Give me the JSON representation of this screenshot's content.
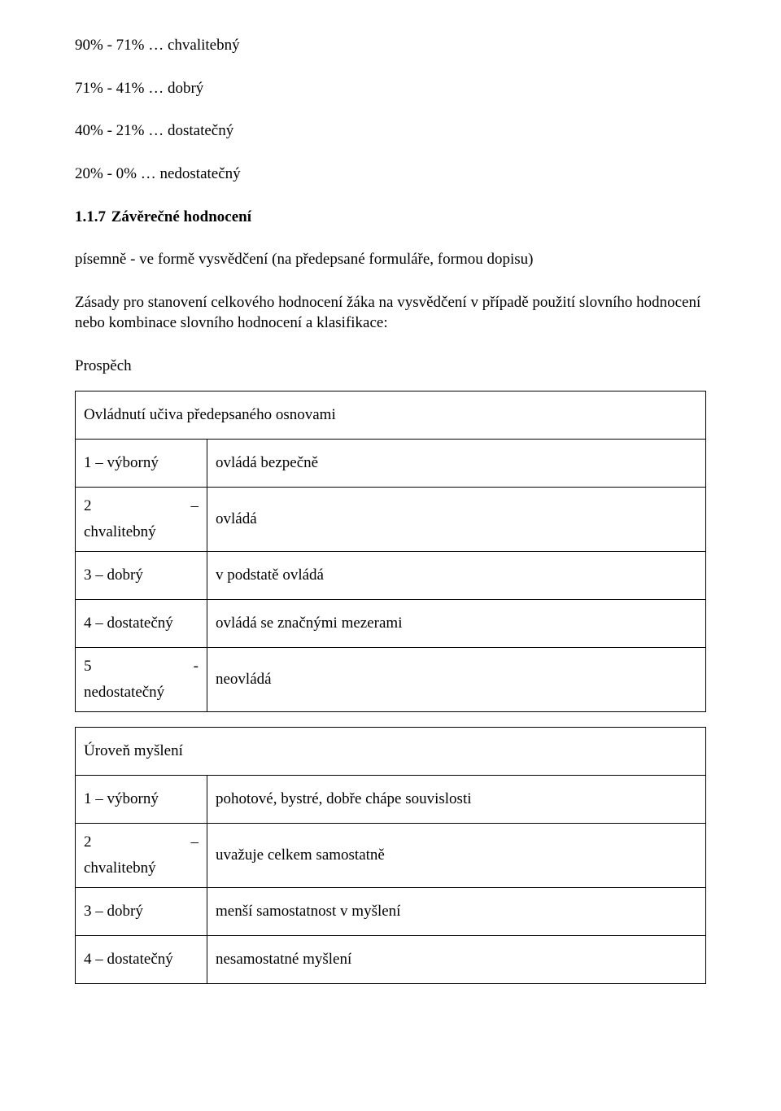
{
  "intro_lines": [
    "90% - 71% … chvalitebný",
    "71% - 41% … dobrý",
    "40% - 21% … dostatečný",
    "20% - 0% … nedostatečný"
  ],
  "section": {
    "number": "1.1.7",
    "title": "Závěrečné hodnocení"
  },
  "body_paras": [
    "písemně - ve formě vysvědčení (na předepsané formuláře, formou dopisu)",
    "Zásady pro stanovení celkového hodnocení žáka na vysvědčení v případě použití slovního hodnocení nebo kombinace slovního hodnocení a klasifikace:"
  ],
  "prospech_label": "Prospěch",
  "tables": [
    {
      "header": "Ovládnutí učiva předepsaného osnovami",
      "rows": [
        {
          "type": "single",
          "grade": "1 – výborný",
          "desc": "ovládá bezpečně"
        },
        {
          "type": "split",
          "grade_top": "2",
          "dash": "–",
          "grade_bot": "chvalitebný",
          "desc": "ovládá"
        },
        {
          "type": "single",
          "grade": "3 – dobrý",
          "desc": "v podstatě ovládá"
        },
        {
          "type": "single",
          "grade": "4 – dostatečný",
          "desc": "ovládá se značnými mezerami"
        },
        {
          "type": "split",
          "grade_top": "5",
          "dash": "-",
          "grade_bot": "nedostatečný",
          "desc": "neovládá"
        }
      ]
    },
    {
      "header": "Úroveň myšlení",
      "rows": [
        {
          "type": "single",
          "grade": "1 – výborný",
          "desc": "pohotové, bystré, dobře chápe souvislosti"
        },
        {
          "type": "split",
          "grade_top": "2",
          "dash": "–",
          "grade_bot": "chvalitebný",
          "desc": "uvažuje celkem samostatně"
        },
        {
          "type": "single",
          "grade": "3 – dobrý",
          "desc": "menší samostatnost v myšlení"
        },
        {
          "type": "single",
          "grade": "4 – dostatečný",
          "desc": "nesamostatné myšlení"
        }
      ]
    }
  ]
}
